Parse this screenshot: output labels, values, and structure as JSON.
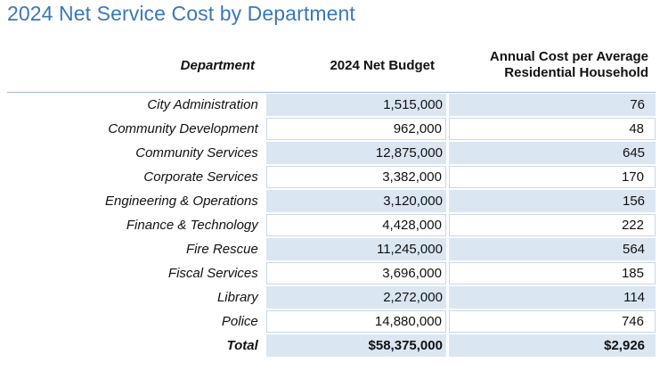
{
  "title": "2024 Net Service Cost by Department",
  "headers": {
    "department": "Department",
    "budget": "2024 Net Budget",
    "cost_line1": "Annual Cost per Average",
    "cost_line2": "Residential Household"
  },
  "rows": [
    {
      "department": "City Administration",
      "budget": "1,515,000",
      "cost": "76"
    },
    {
      "department": "Community Development",
      "budget": "962,000",
      "cost": "48"
    },
    {
      "department": "Community Services",
      "budget": "12,875,000",
      "cost": "645"
    },
    {
      "department": "Corporate Services",
      "budget": "3,382,000",
      "cost": "170"
    },
    {
      "department": "Engineering & Operations",
      "budget": "3,120,000",
      "cost": "156"
    },
    {
      "department": "Finance & Technology",
      "budget": "4,428,000",
      "cost": "222"
    },
    {
      "department": "Fire Rescue",
      "budget": "11,245,000",
      "cost": "564"
    },
    {
      "department": "Fiscal Services",
      "budget": "3,696,000",
      "cost": "185"
    },
    {
      "department": "Library",
      "budget": "2,272,000",
      "cost": "114"
    },
    {
      "department": "Police",
      "budget": "14,880,000",
      "cost": "746"
    }
  ],
  "total": {
    "label": "Total",
    "budget": "$58,375,000",
    "cost": "$2,926"
  },
  "colors": {
    "title": "#3a78b8",
    "shade": "#dbe6f3",
    "rule": "#9bbbe0"
  }
}
